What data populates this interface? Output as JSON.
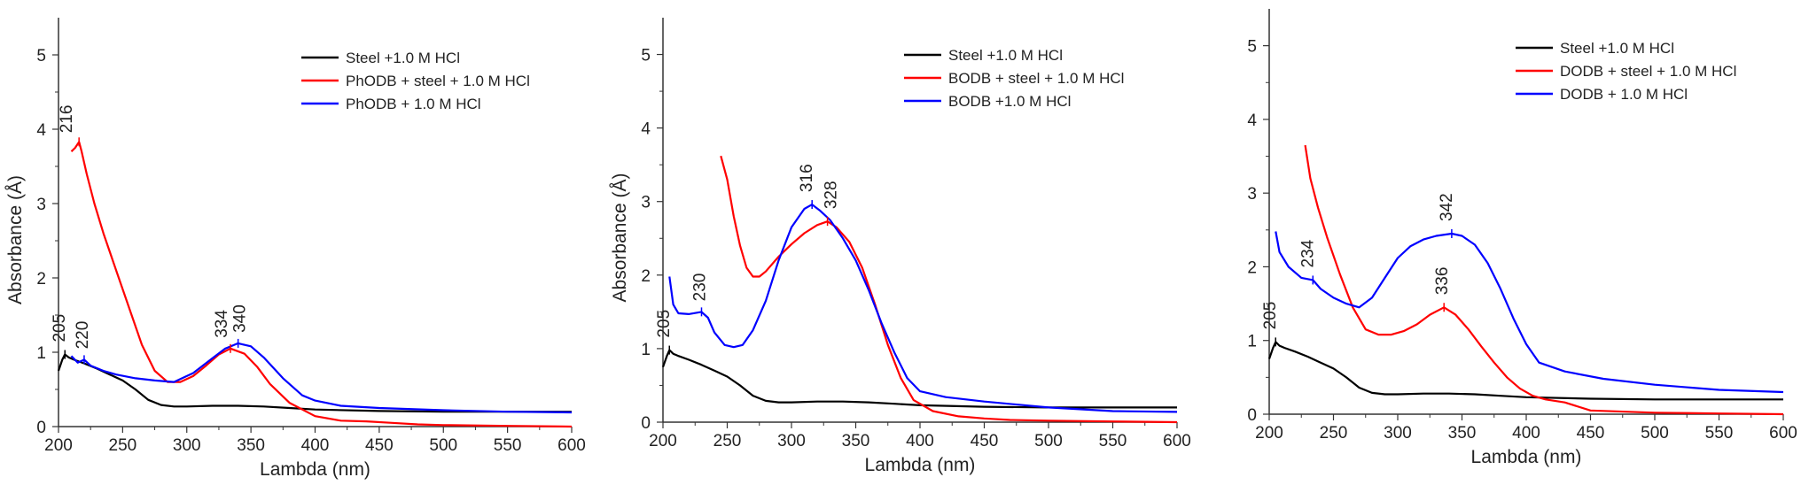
{
  "chart_data": [
    {
      "type": "line",
      "xlabel": "Lambda (nm)",
      "ylabel": "Absorbance (Å)",
      "xlim": [
        200,
        600
      ],
      "ylim": [
        0,
        5.5
      ],
      "x_ticks": [
        "200",
        "250",
        "300",
        "350",
        "400",
        "450",
        "500",
        "550",
        "600"
      ],
      "y_ticks": [
        "0",
        "1",
        "2",
        "3",
        "4",
        "5"
      ],
      "legend_position": "top-right",
      "series": [
        {
          "name": "Steel +1.0  M HCl",
          "color": "#000000",
          "x": [
            200,
            203,
            205,
            208,
            212,
            220,
            230,
            240,
            250,
            260,
            270,
            280,
            290,
            300,
            320,
            340,
            360,
            380,
            400,
            450,
            500,
            550,
            600
          ],
          "y": [
            0.75,
            0.9,
            0.97,
            0.93,
            0.9,
            0.85,
            0.78,
            0.7,
            0.62,
            0.5,
            0.36,
            0.29,
            0.27,
            0.27,
            0.28,
            0.28,
            0.27,
            0.25,
            0.23,
            0.21,
            0.2,
            0.2,
            0.2
          ]
        },
        {
          "name": "PhODB + steel + 1.0 M HCl",
          "color": "#ff0000",
          "x": [
            210,
            213,
            216,
            218,
            222,
            228,
            235,
            245,
            255,
            265,
            275,
            285,
            295,
            305,
            315,
            325,
            334,
            345,
            355,
            365,
            380,
            400,
            420,
            440,
            460,
            480,
            500,
            550,
            600
          ],
          "y": [
            3.7,
            3.75,
            3.83,
            3.7,
            3.4,
            3.0,
            2.6,
            2.1,
            1.6,
            1.1,
            0.75,
            0.6,
            0.6,
            0.68,
            0.82,
            0.97,
            1.05,
            0.98,
            0.8,
            0.57,
            0.32,
            0.14,
            0.08,
            0.07,
            0.05,
            0.03,
            0.02,
            0.01,
            0.0
          ]
        },
        {
          "name": "PhODB + 1.0 M HCl",
          "color": "#0000ff",
          "x": [
            210,
            215,
            220,
            225,
            235,
            245,
            260,
            275,
            290,
            305,
            320,
            330,
            340,
            350,
            360,
            375,
            390,
            400,
            420,
            450,
            500,
            550,
            600
          ],
          "y": [
            0.95,
            0.86,
            0.9,
            0.82,
            0.75,
            0.7,
            0.65,
            0.62,
            0.6,
            0.72,
            0.92,
            1.05,
            1.12,
            1.08,
            0.93,
            0.65,
            0.42,
            0.35,
            0.28,
            0.25,
            0.22,
            0.2,
            0.19
          ]
        }
      ],
      "annotations": [
        "216",
        "205",
        "220",
        "334",
        "340"
      ]
    },
    {
      "type": "line",
      "xlabel": "Lambda (nm)",
      "ylabel": "Absorbance (Å)",
      "xlim": [
        200,
        600
      ],
      "ylim": [
        0,
        5.5
      ],
      "x_ticks": [
        "200",
        "250",
        "300",
        "350",
        "400",
        "450",
        "500",
        "550",
        "600"
      ],
      "y_ticks": [
        "0",
        "1",
        "2",
        "3",
        "4",
        "5"
      ],
      "legend_position": "top-right",
      "series": [
        {
          "name": "Steel +1.0 M HCl",
          "color": "#000000",
          "x": [
            200,
            203,
            205,
            208,
            212,
            220,
            230,
            240,
            250,
            260,
            270,
            280,
            290,
            300,
            320,
            340,
            360,
            380,
            400,
            450,
            500,
            550,
            600
          ],
          "y": [
            0.75,
            0.9,
            0.98,
            0.93,
            0.9,
            0.85,
            0.78,
            0.7,
            0.62,
            0.5,
            0.36,
            0.29,
            0.27,
            0.27,
            0.28,
            0.28,
            0.27,
            0.25,
            0.23,
            0.21,
            0.2,
            0.2,
            0.2
          ]
        },
        {
          "name": "BODB + steel + 1.0 M HCl",
          "color": "#ff0000",
          "x": [
            245,
            250,
            255,
            260,
            265,
            270,
            275,
            280,
            290,
            300,
            310,
            320,
            328,
            335,
            345,
            355,
            365,
            375,
            385,
            395,
            410,
            430,
            450,
            470,
            500,
            550,
            600
          ],
          "y": [
            3.62,
            3.3,
            2.8,
            2.4,
            2.1,
            1.98,
            1.98,
            2.05,
            2.25,
            2.42,
            2.57,
            2.68,
            2.73,
            2.65,
            2.45,
            2.1,
            1.6,
            1.05,
            0.6,
            0.3,
            0.15,
            0.08,
            0.05,
            0.03,
            0.02,
            0.01,
            0.0
          ]
        },
        {
          "name": "BODB  +1.0  M HCl",
          "color": "#0000ff",
          "x": [
            205,
            208,
            212,
            220,
            230,
            235,
            240,
            248,
            255,
            262,
            270,
            280,
            290,
            300,
            310,
            316,
            322,
            330,
            340,
            350,
            360,
            370,
            380,
            390,
            400,
            420,
            450,
            500,
            550,
            600
          ],
          "y": [
            1.98,
            1.6,
            1.48,
            1.47,
            1.5,
            1.42,
            1.22,
            1.05,
            1.02,
            1.05,
            1.25,
            1.65,
            2.2,
            2.65,
            2.9,
            2.96,
            2.88,
            2.75,
            2.5,
            2.2,
            1.8,
            1.35,
            0.95,
            0.6,
            0.42,
            0.34,
            0.28,
            0.2,
            0.15,
            0.14
          ]
        }
      ],
      "annotations": [
        "205",
        "230",
        "316",
        "328"
      ]
    },
    {
      "type": "line",
      "xlabel": "Lambda (nm)",
      "ylabel": "",
      "xlim": [
        200,
        600
      ],
      "ylim": [
        0,
        5.5
      ],
      "x_ticks": [
        "200",
        "250",
        "300",
        "350",
        "400",
        "450",
        "500",
        "550",
        "600"
      ],
      "y_ticks": [
        "0",
        "1",
        "2",
        "3",
        "4",
        "5"
      ],
      "legend_position": "top-right",
      "series": [
        {
          "name": "Steel +1.0 M HCl",
          "color": "#000000",
          "x": [
            200,
            203,
            205,
            208,
            212,
            220,
            230,
            240,
            250,
            260,
            270,
            280,
            290,
            300,
            320,
            340,
            360,
            380,
            400,
            450,
            500,
            550,
            600
          ],
          "y": [
            0.75,
            0.9,
            0.98,
            0.93,
            0.9,
            0.85,
            0.78,
            0.7,
            0.62,
            0.5,
            0.36,
            0.29,
            0.27,
            0.27,
            0.28,
            0.28,
            0.27,
            0.25,
            0.23,
            0.21,
            0.2,
            0.2,
            0.2
          ]
        },
        {
          "name": "DODB + steel + 1.0 M HCl",
          "color": "#ff0000",
          "x": [
            228,
            232,
            238,
            245,
            255,
            265,
            275,
            285,
            295,
            305,
            315,
            325,
            336,
            345,
            355,
            365,
            375,
            385,
            395,
            405,
            415,
            430,
            450,
            500,
            550,
            600
          ],
          "y": [
            3.65,
            3.2,
            2.8,
            2.4,
            1.9,
            1.45,
            1.15,
            1.08,
            1.08,
            1.13,
            1.22,
            1.35,
            1.45,
            1.35,
            1.15,
            0.92,
            0.7,
            0.5,
            0.35,
            0.25,
            0.2,
            0.16,
            0.05,
            0.02,
            0.01,
            0.0
          ]
        },
        {
          "name": "DODB + 1.0 M HCl",
          "color": "#0000ff",
          "x": [
            205,
            208,
            215,
            225,
            234,
            240,
            250,
            260,
            270,
            280,
            290,
            300,
            310,
            320,
            330,
            342,
            350,
            360,
            370,
            380,
            390,
            400,
            410,
            430,
            460,
            500,
            550,
            600
          ],
          "y": [
            2.48,
            2.2,
            2.0,
            1.85,
            1.82,
            1.7,
            1.58,
            1.5,
            1.45,
            1.58,
            1.85,
            2.12,
            2.28,
            2.37,
            2.42,
            2.45,
            2.42,
            2.3,
            2.05,
            1.7,
            1.3,
            0.95,
            0.7,
            0.58,
            0.48,
            0.4,
            0.33,
            0.3
          ]
        }
      ],
      "annotations": [
        "205",
        "234",
        "342",
        "336"
      ]
    }
  ]
}
